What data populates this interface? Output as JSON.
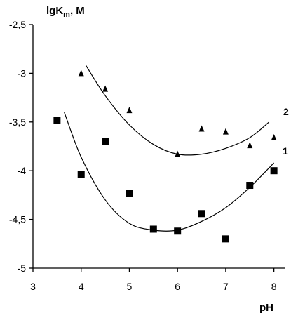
{
  "chart_data": {
    "type": "scatter",
    "title": "",
    "ylabel": "lgK_m, M",
    "ylabel_main": "lgK",
    "ylabel_sub": "m",
    "ylabel_rest": ", M",
    "xlabel": "pH",
    "xlim": [
      3,
      8.5
    ],
    "ylim": [
      -5,
      -2.5
    ],
    "x_ticks": [
      3,
      4,
      5,
      6,
      7,
      8
    ],
    "x_tick_labels": [
      "3",
      "4",
      "5",
      "6",
      "7",
      "8"
    ],
    "y_ticks": [
      -2.5,
      -3,
      -3.5,
      -4,
      -4.5,
      -5
    ],
    "y_tick_labels": [
      "-2,5",
      "-3",
      "-3,5",
      "-4",
      "-4,5",
      "-5"
    ],
    "grid": false,
    "legend": "none",
    "series": [
      {
        "label": "1",
        "marker": "square",
        "points": [
          [
            3.5,
            -3.48
          ],
          [
            4.0,
            -4.04
          ],
          [
            4.5,
            -3.7
          ],
          [
            5.0,
            -4.23
          ],
          [
            5.5,
            -4.6
          ],
          [
            6.0,
            -4.62
          ],
          [
            6.5,
            -4.44
          ],
          [
            7.0,
            -4.7
          ],
          [
            7.5,
            -4.15
          ],
          [
            8.0,
            -4.0
          ]
        ],
        "curve": [
          [
            3.65,
            -3.4
          ],
          [
            4.0,
            -3.86
          ],
          [
            4.5,
            -4.3
          ],
          [
            5.0,
            -4.54
          ],
          [
            5.5,
            -4.61
          ],
          [
            6.0,
            -4.61
          ],
          [
            6.5,
            -4.52
          ],
          [
            7.0,
            -4.38
          ],
          [
            7.5,
            -4.17
          ],
          [
            8.0,
            -3.92
          ]
        ]
      },
      {
        "label": "2",
        "marker": "triangle",
        "points": [
          [
            4.0,
            -3.0
          ],
          [
            4.5,
            -3.16
          ],
          [
            5.0,
            -3.38
          ],
          [
            6.0,
            -3.83
          ],
          [
            6.5,
            -3.57
          ],
          [
            7.0,
            -3.6
          ],
          [
            7.5,
            -3.74
          ],
          [
            8.0,
            -3.66
          ]
        ],
        "curve": [
          [
            4.1,
            -2.92
          ],
          [
            4.5,
            -3.23
          ],
          [
            5.0,
            -3.53
          ],
          [
            5.5,
            -3.73
          ],
          [
            6.0,
            -3.83
          ],
          [
            6.5,
            -3.83
          ],
          [
            7.0,
            -3.77
          ],
          [
            7.5,
            -3.66
          ],
          [
            7.9,
            -3.5
          ]
        ]
      }
    ]
  }
}
